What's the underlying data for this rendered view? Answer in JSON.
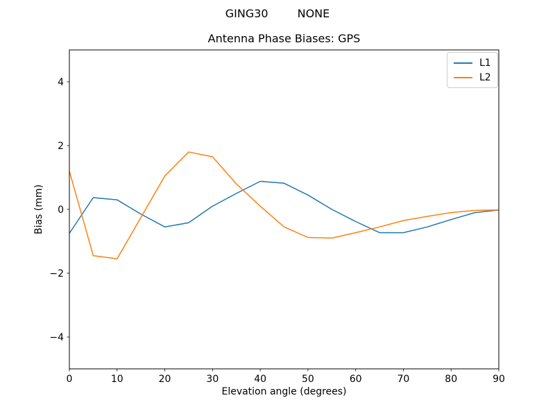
{
  "header": {
    "station": "GING30",
    "solution": "NONE"
  },
  "chart_data": {
    "type": "line",
    "title": "Antenna Phase Biases: GPS",
    "xlabel": "Elevation angle (degrees)",
    "ylabel": "Bias (mm)",
    "xlim": [
      0,
      90
    ],
    "ylim": [
      -5,
      5
    ],
    "xticks": [
      0,
      10,
      20,
      30,
      40,
      50,
      60,
      70,
      80,
      90
    ],
    "yticks": [
      -4,
      -2,
      0,
      2,
      4
    ],
    "grid": false,
    "legend_position": "upper right",
    "background_color": "#ffffff",
    "axes_color": "#000000",
    "x": [
      0,
      5,
      10,
      15,
      20,
      25,
      30,
      35,
      40,
      45,
      50,
      55,
      60,
      65,
      70,
      75,
      80,
      85,
      90
    ],
    "series": [
      {
        "name": "L1",
        "color": "#1f77b4",
        "values": [
          -0.75,
          0.37,
          0.3,
          -0.15,
          -0.55,
          -0.42,
          0.1,
          0.5,
          0.88,
          0.82,
          0.45,
          0.0,
          -0.38,
          -0.73,
          -0.73,
          -0.55,
          -0.32,
          -0.1,
          -0.02
        ]
      },
      {
        "name": "L2",
        "color": "#ff7f0e",
        "values": [
          1.2,
          -1.45,
          -1.55,
          -0.25,
          1.05,
          1.8,
          1.65,
          0.8,
          0.1,
          -0.55,
          -0.88,
          -0.9,
          -0.73,
          -0.55,
          -0.35,
          -0.22,
          -0.1,
          -0.03,
          -0.02
        ]
      }
    ]
  }
}
